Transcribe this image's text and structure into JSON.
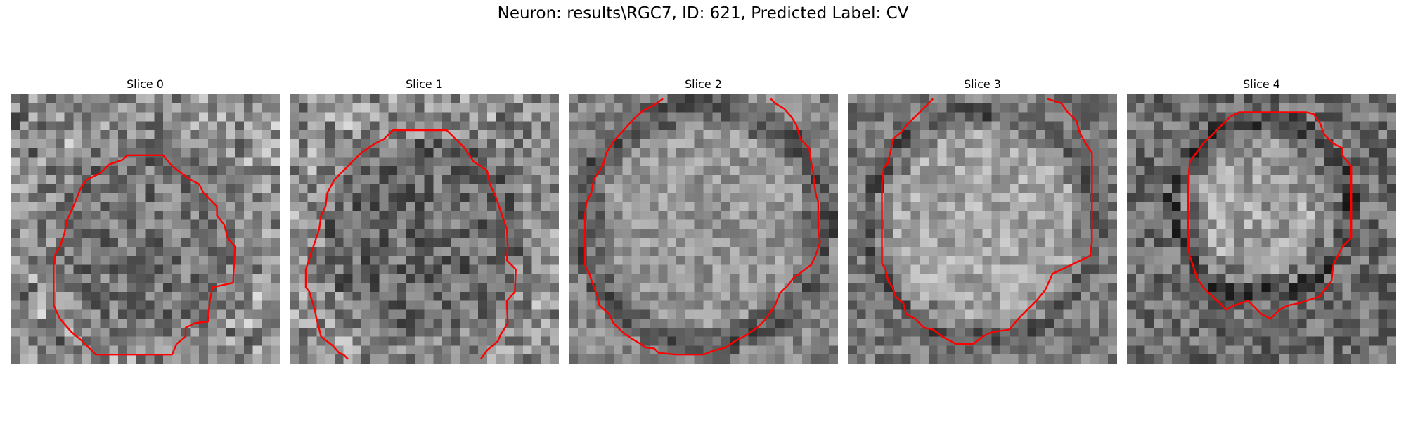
{
  "figure": {
    "title": "Neuron: results\\RGC7, ID: 621, Predicted Label: CV"
  },
  "slices": [
    {
      "title": "Slice 0"
    },
    {
      "title": "Slice 1"
    },
    {
      "title": "Slice 2"
    },
    {
      "title": "Slice 3"
    },
    {
      "title": "Slice 4"
    }
  ],
  "colors": {
    "contour": "#ff0000",
    "background": "#ffffff"
  },
  "image": {
    "colormap": "gray",
    "grid_cells": 30
  }
}
